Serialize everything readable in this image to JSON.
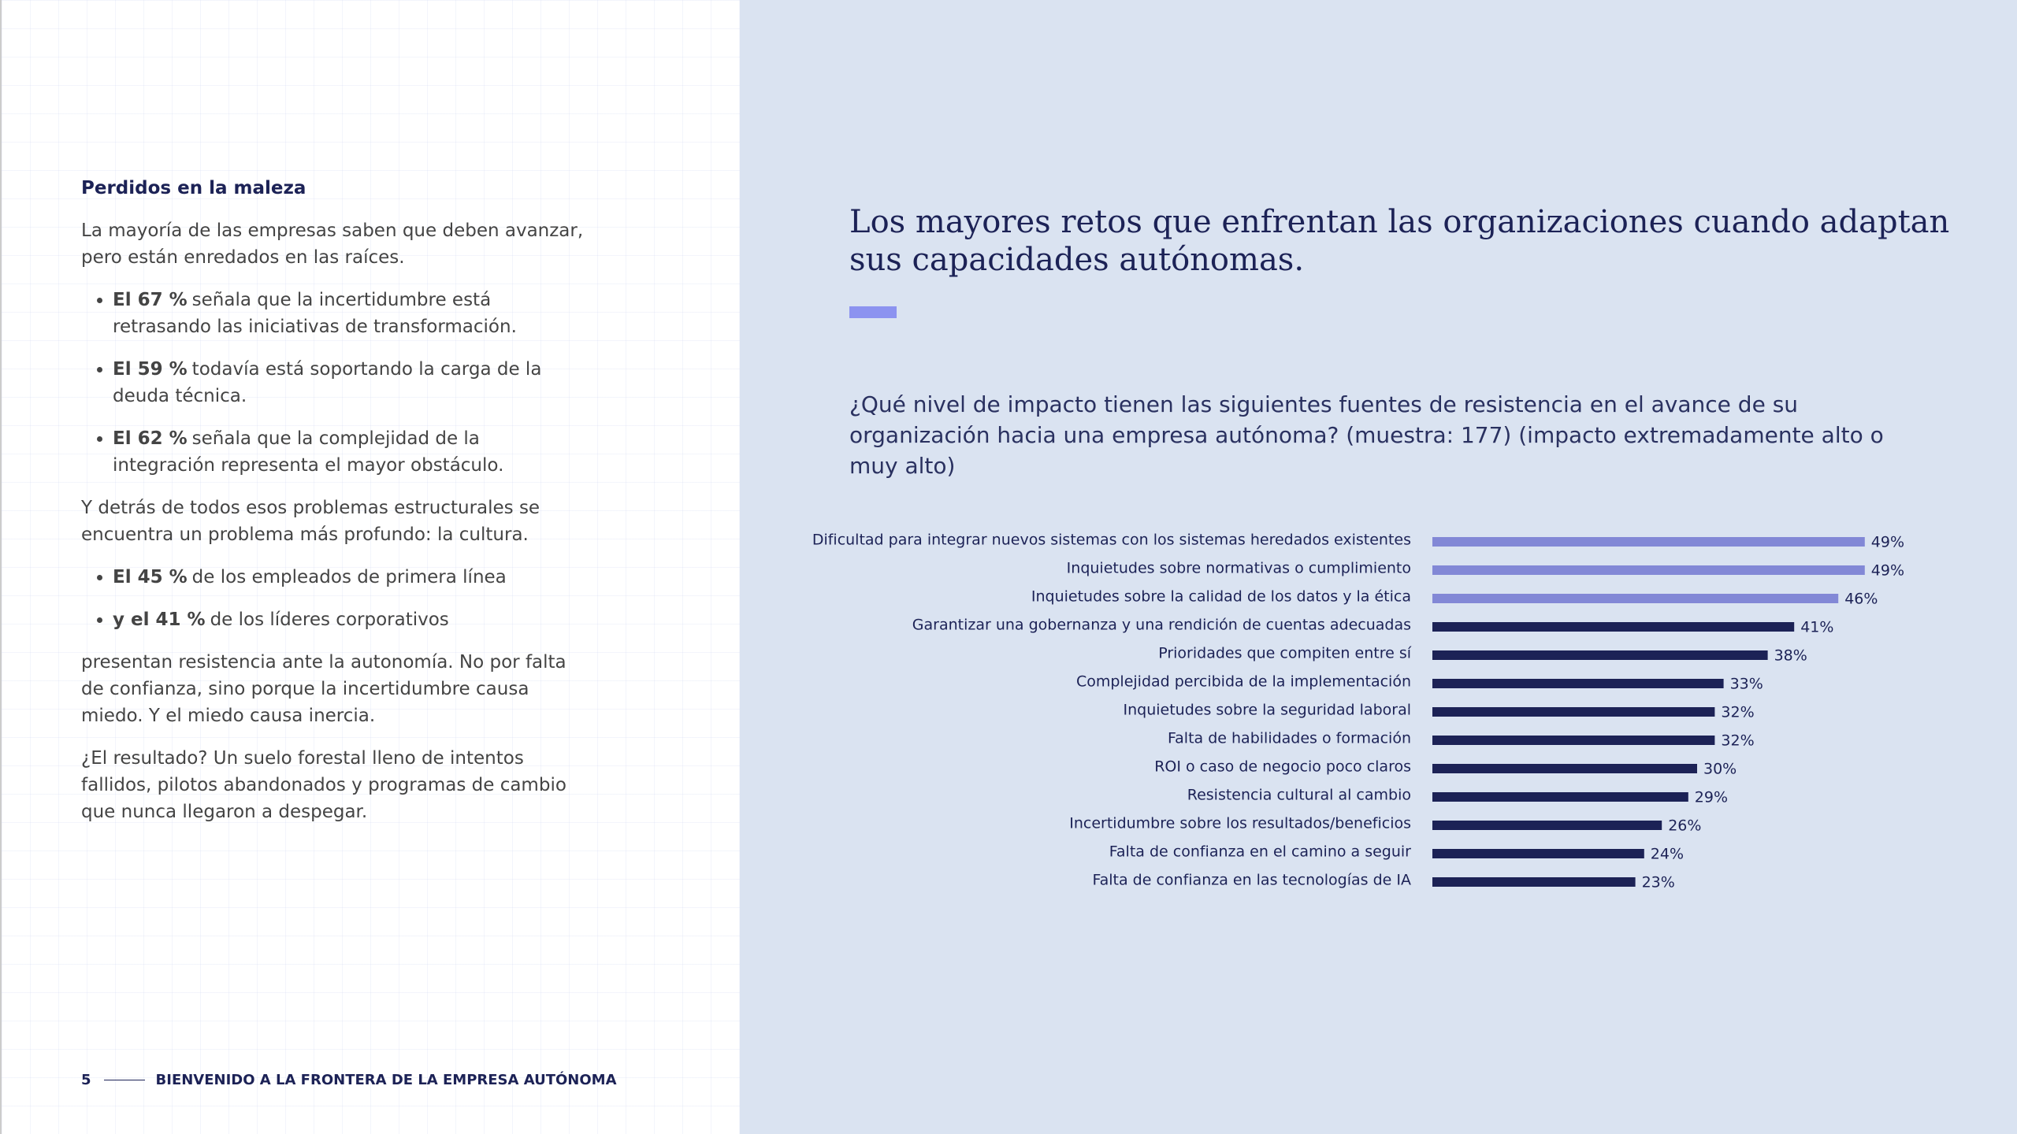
{
  "left": {
    "heading": "Perdidos en la maleza",
    "intro": "La mayoría de las empresas saben que deben avanzar, pero están enredados en las raíces.",
    "bullets1": [
      {
        "bold": "El 67 %",
        "text": "señala que la incertidumbre está retrasando las iniciativas de transformación."
      },
      {
        "bold": "El 59 %",
        "text": "todavía está soportando la carga de la deuda técnica."
      },
      {
        "bold": "El 62 %",
        "text": "señala que la complejidad de la integración representa el mayor obstáculo."
      }
    ],
    "middle": "Y detrás de todos esos problemas estructurales se encuentra un problema más profundo: la cultura.",
    "bullets2": [
      {
        "bold": "El 45 %",
        "text": "de los empleados de primera línea"
      },
      {
        "bold": "y el 41 %",
        "text": "de los líderes corporativos"
      }
    ],
    "para1": "presentan resistencia ante la autonomía. No por falta de confianza, sino porque la incertidumbre causa miedo. Y el miedo causa inercia.",
    "para2": "¿El resultado? Un suelo forestal lleno de intentos fallidos, pilotos abandonados y programas de cambio que nunca llegaron a despegar."
  },
  "footer": {
    "page": "5",
    "text": "BIENVENIDO A LA FRONTERA DE LA EMPRESA AUTÓNOMA"
  },
  "right": {
    "title": "Los mayores retos que enfrentan las organizaciones cuando adaptan sus capacidades autónomas.",
    "question": "¿Qué nivel de impacto tienen las siguientes fuentes de resistencia en el avance de su organización hacia una empresa autónoma? (muestra: 177) (impacto extremadamente alto o muy alto)"
  },
  "chart_data": {
    "type": "hbar",
    "categories": [
      "Dificultad para integrar nuevos sistemas con los sistemas heredados existentes",
      "Inquietudes sobre normativas o  cumplimiento",
      "Inquietudes sobre la calidad de los datos y la ética",
      "Garantizar una gobernanza y una rendición de cuentas adecuadas",
      "Prioridades que compiten entre sí",
      "Complejidad percibida de la implementación",
      "Inquietudes sobre la seguridad laboral",
      "Falta de habilidades o formación",
      "ROI o caso de negocio poco claros",
      "Resistencia cultural al cambio",
      "Incertidumbre sobre los resultados/beneficios",
      "Falta de confianza en el camino a seguir",
      "Falta de confianza en las tecnologías de IA"
    ],
    "values": [
      49,
      49,
      46,
      41,
      38,
      33,
      32,
      32,
      30,
      29,
      26,
      24,
      23
    ],
    "value_labels": [
      "49%",
      "49%",
      "46%",
      "41%",
      "38%",
      "33%",
      "32%",
      "32%",
      "30%",
      "29%",
      "26%",
      "24%",
      "23%"
    ],
    "colors": [
      "#8288d6",
      "#8288d6",
      "#8288d6",
      "#1c2256",
      "#1c2256",
      "#1c2256",
      "#1c2256",
      "#1c2256",
      "#1c2256",
      "#1c2256",
      "#1c2256",
      "#1c2256",
      "#1c2256"
    ]
  }
}
